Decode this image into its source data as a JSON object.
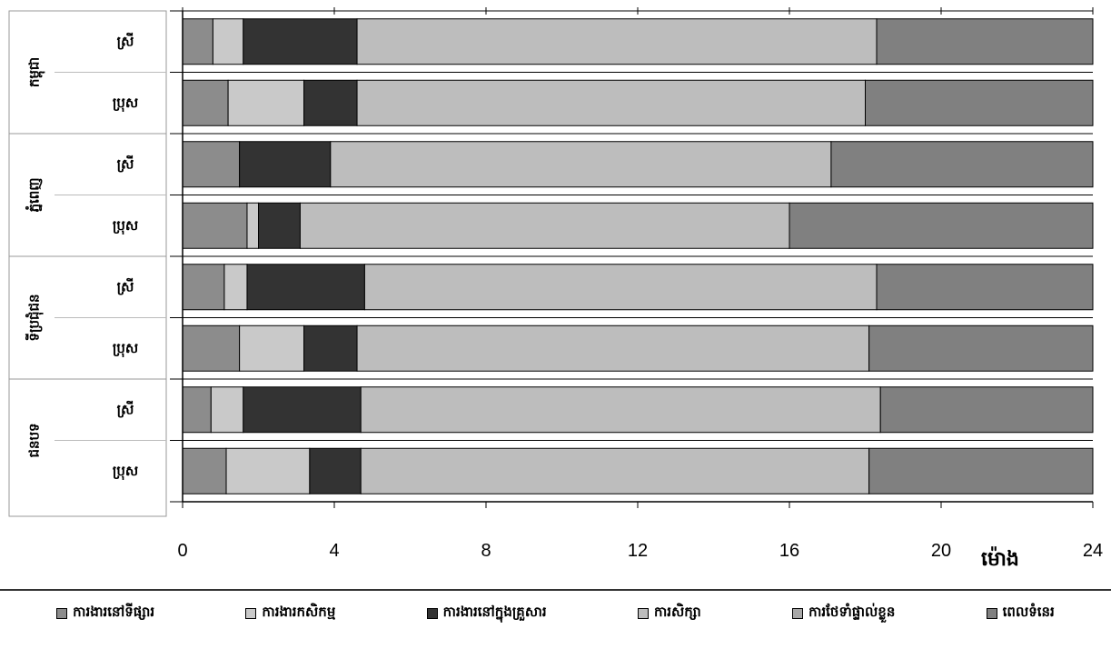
{
  "chart_data": {
    "type": "bar",
    "orientation": "horizontal",
    "stacked": true,
    "xlim": [
      0,
      24
    ],
    "xticks": [
      0,
      4,
      8,
      12,
      16,
      20,
      24
    ],
    "xlabel": "ម៉ោង",
    "grid": true,
    "legend_position": "bottom",
    "groups": [
      {
        "label": "កម្ពុជា",
        "rows": [
          "ស្រី",
          "ប្រុស"
        ]
      },
      {
        "label": "ភ្នំពេញ",
        "rows": [
          "ស្រី",
          "ប្រុស"
        ]
      },
      {
        "label": "ទីប្រជុំជន",
        "rows": [
          "ស្រី",
          "ប្រុស"
        ]
      },
      {
        "label": "ជនបទ",
        "rows": [
          "ស្រី",
          "ប្រុស"
        ]
      }
    ],
    "categories": [
      "កម្ពុជា - ស្រី",
      "កម្ពុជា - ប្រុស",
      "ភ្នំពេញ - ស្រី",
      "ភ្នំពេញ - ប្រុស",
      "ទីប្រជុំជន - ស្រី",
      "ទីប្រជុំជន - ប្រុស",
      "ជនបទ - ស្រី",
      "ជនបទ - ប្រុស"
    ],
    "series": [
      {
        "name": "ការងារនៅទីផ្សារ",
        "color": "#8c8c8c",
        "values": [
          0.8,
          1.2,
          1.5,
          1.7,
          1.1,
          1.5,
          0.75,
          1.15
        ]
      },
      {
        "name": "ការងារកសិកម្ម",
        "color": "#c9c9c9",
        "values": [
          0.8,
          2.0,
          0.0,
          0.3,
          0.6,
          1.7,
          0.85,
          2.2
        ]
      },
      {
        "name": "ការងារនៅក្នុងគ្រួសារ",
        "color": "#333333",
        "values": [
          3.0,
          1.4,
          2.4,
          1.1,
          3.1,
          1.4,
          3.1,
          1.35
        ]
      },
      {
        "name": "ការសិក្សា",
        "color": "#bdbdbd",
        "values": [
          13.7,
          13.4,
          13.2,
          12.9,
          13.5,
          13.5,
          13.7,
          13.4
        ]
      },
      {
        "name": "ការថែទាំផ្ទាល់ខ្លួន",
        "color": "#a8a8a8",
        "values": [
          0.0,
          0.0,
          0.0,
          0.0,
          0.0,
          0.0,
          0.0,
          0.0
        ]
      },
      {
        "name": "ពេលទំនេរ",
        "color": "#808080",
        "values": [
          5.7,
          6.0,
          6.9,
          8.0,
          5.7,
          5.9,
          5.6,
          5.9
        ]
      }
    ]
  }
}
